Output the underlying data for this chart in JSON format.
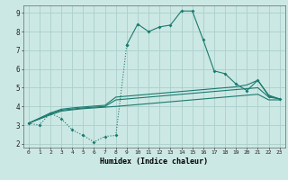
{
  "xlabel": "Humidex (Indice chaleur)",
  "bg_color": "#cce8e4",
  "grid_color": "#aacfcb",
  "line_color": "#1a7a6e",
  "xlim": [
    -0.5,
    23.5
  ],
  "ylim": [
    1.8,
    9.4
  ],
  "yticks": [
    2,
    3,
    4,
    5,
    6,
    7,
    8,
    9
  ],
  "xticks": [
    0,
    1,
    2,
    3,
    4,
    5,
    6,
    7,
    8,
    9,
    10,
    11,
    12,
    13,
    14,
    15,
    16,
    17,
    18,
    19,
    20,
    21,
    22,
    23
  ],
  "curve1_x": [
    0,
    1,
    2,
    3,
    4,
    5,
    6,
    7,
    8,
    9,
    10,
    11,
    12,
    13,
    14,
    15,
    16,
    17,
    18,
    19,
    20,
    21,
    22,
    23
  ],
  "curve1_y": [
    3.1,
    3.0,
    3.65,
    3.35,
    2.75,
    2.45,
    2.1,
    2.4,
    2.45,
    7.3,
    8.4,
    8.0,
    8.25,
    8.35,
    9.1,
    9.1,
    7.55,
    5.9,
    5.75,
    5.2,
    4.85,
    5.4,
    4.55,
    4.4
  ],
  "curve1_dotted_end": 9,
  "curve2_x": [
    0,
    2,
    3,
    4,
    5,
    6,
    7,
    8,
    9,
    10,
    11,
    12,
    13,
    14,
    15,
    16,
    17,
    18,
    19,
    20,
    21,
    22,
    23
  ],
  "curve2_y": [
    3.1,
    3.55,
    3.75,
    3.82,
    3.88,
    3.92,
    3.96,
    4.0,
    4.05,
    4.1,
    4.15,
    4.2,
    4.25,
    4.3,
    4.35,
    4.4,
    4.45,
    4.5,
    4.55,
    4.6,
    4.65,
    4.35,
    4.35
  ],
  "curve3_x": [
    0,
    2,
    3,
    4,
    5,
    6,
    7,
    8,
    9,
    10,
    11,
    12,
    13,
    14,
    15,
    16,
    17,
    18,
    19,
    20,
    21,
    22,
    23
  ],
  "curve3_y": [
    3.1,
    3.6,
    3.8,
    3.86,
    3.92,
    3.96,
    4.0,
    4.35,
    4.4,
    4.45,
    4.5,
    4.55,
    4.6,
    4.65,
    4.7,
    4.75,
    4.8,
    4.85,
    4.9,
    4.95,
    5.0,
    4.5,
    4.4
  ],
  "curve4_x": [
    0,
    2,
    3,
    4,
    5,
    6,
    7,
    8,
    9,
    10,
    11,
    12,
    13,
    14,
    15,
    16,
    17,
    18,
    19,
    20,
    21,
    22,
    23
  ],
  "curve4_y": [
    3.1,
    3.65,
    3.85,
    3.92,
    3.97,
    4.02,
    4.06,
    4.5,
    4.55,
    4.6,
    4.65,
    4.7,
    4.75,
    4.8,
    4.85,
    4.9,
    4.95,
    5.0,
    5.05,
    5.15,
    5.4,
    4.6,
    4.4
  ]
}
